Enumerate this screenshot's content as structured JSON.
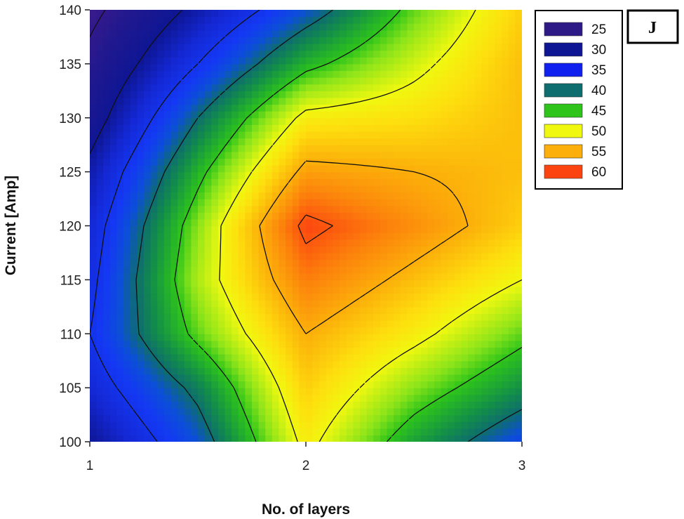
{
  "chart_data": {
    "type": "heatmap",
    "subtype": "filled-contour",
    "panel_label": "J",
    "xlabel": "No. of layers",
    "ylabel": "Current [Amp]",
    "xlim": [
      1,
      3
    ],
    "ylim": [
      100,
      140
    ],
    "x_ticks": [
      "1",
      "2",
      "3"
    ],
    "x_tick_values": [
      1,
      2,
      3
    ],
    "y_ticks": [
      "100",
      "105",
      "110",
      "115",
      "120",
      "125",
      "130",
      "135",
      "140"
    ],
    "y_tick_values": [
      100,
      105,
      110,
      115,
      120,
      125,
      130,
      135,
      140
    ],
    "x": [
      1,
      1.5,
      2,
      2.5,
      3
    ],
    "y": [
      100,
      105,
      110,
      115,
      120,
      125,
      130,
      135,
      140
    ],
    "z": [
      [
        30,
        38,
        51,
        43,
        37
      ],
      [
        33,
        41,
        53,
        47,
        42
      ],
      [
        35,
        46,
        55,
        51,
        46
      ],
      [
        34,
        48,
        58,
        54,
        50
      ],
      [
        33,
        47,
        61,
        57,
        53
      ],
      [
        31,
        44,
        56,
        55,
        54
      ],
      [
        28,
        40,
        51,
        52,
        54
      ],
      [
        26,
        35,
        44,
        49,
        54
      ],
      [
        24,
        31,
        38,
        46,
        53
      ]
    ],
    "contour_levels": [
      25,
      30,
      35,
      40,
      45,
      50,
      55,
      60
    ],
    "legend_position": "top-right",
    "grid": false,
    "legend": [
      {
        "label": "25",
        "color": "#2e1a87"
      },
      {
        "label": "30",
        "color": "#0e1694"
      },
      {
        "label": "35",
        "color": "#1020ee"
      },
      {
        "label": "40",
        "color": "#0e6d6e"
      },
      {
        "label": "45",
        "color": "#2ec41a"
      },
      {
        "label": "50",
        "color": "#f0f810"
      },
      {
        "label": "55",
        "color": "#fcae0a"
      },
      {
        "label": "60",
        "color": "#fc4410"
      }
    ],
    "colorscale": [
      {
        "v": 24,
        "color": "#3a1a8a"
      },
      {
        "v": 27,
        "color": "#1f188f"
      },
      {
        "v": 30,
        "color": "#0e1694"
      },
      {
        "v": 33,
        "color": "#1428d4"
      },
      {
        "v": 36,
        "color": "#1438f4"
      },
      {
        "v": 38,
        "color": "#0c4fd8"
      },
      {
        "v": 40,
        "color": "#0e6d6e"
      },
      {
        "v": 42,
        "color": "#138f48"
      },
      {
        "v": 45,
        "color": "#2ec41a"
      },
      {
        "v": 47,
        "color": "#8ce41a"
      },
      {
        "v": 50,
        "color": "#f0f810"
      },
      {
        "v": 52,
        "color": "#fde00e"
      },
      {
        "v": 55,
        "color": "#fcae0a"
      },
      {
        "v": 58,
        "color": "#fc7e0c"
      },
      {
        "v": 61,
        "color": "#fc4410"
      }
    ]
  }
}
